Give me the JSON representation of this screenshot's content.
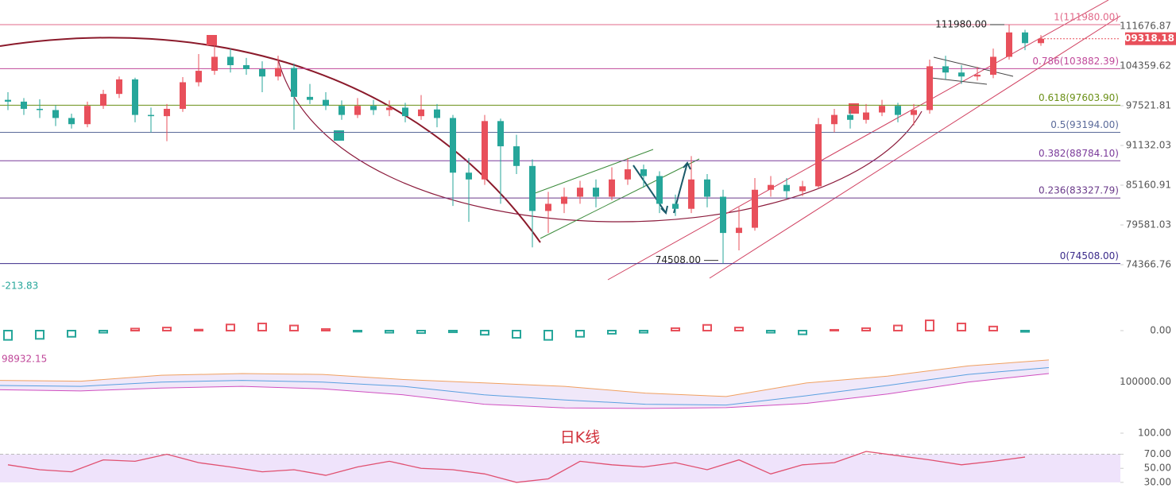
{
  "watermark": "日K线",
  "chart_data": [
    {
      "type": "candlestick",
      "log_scale": true,
      "up_color": "#e8505b",
      "down_color": "#26a69a",
      "ylim": [
        73170,
        116780
      ],
      "yticks": [
        111676.87,
        104359.62,
        97521.81,
        91132.03,
        85160.91,
        79581.03,
        74366.76
      ],
      "last_price": 109318.18,
      "fib_levels": [
        {
          "label": "1(111980.00)",
          "value": 111980,
          "color": "#e26a8a"
        },
        {
          "label": "0.786(103882.39)",
          "value": 103882.39,
          "color": "#c0489a"
        },
        {
          "label": "0.618(97603.90)",
          "value": 97603.9,
          "color": "#6a8f16"
        },
        {
          "label": "0.5(93194.00)",
          "value": 93194,
          "color": "#5a6a9a"
        },
        {
          "label": "0.382(88784.10)",
          "value": 88784.1,
          "color": "#7a3a9a"
        },
        {
          "label": "0.236(83327.79)",
          "value": 83327.79,
          "color": "#6a3a8a"
        },
        {
          "label": "0(74508.00)",
          "value": 74508,
          "color": "#3a2a8a"
        }
      ],
      "annotations": [
        {
          "label": "111980.00",
          "value": 111980
        },
        {
          "label": "74508.00",
          "value": 74508
        }
      ],
      "ohlc": [
        [
          98500,
          99800,
          96800,
          98200
        ],
        [
          98200,
          98800,
          96000,
          97000
        ],
        [
          97000,
          98600,
          95500,
          96800
        ],
        [
          96800,
          97600,
          94200,
          95500
        ],
        [
          95500,
          96200,
          93800,
          94500
        ],
        [
          94500,
          98200,
          94000,
          97500
        ],
        [
          97500,
          100200,
          97000,
          99500
        ],
        [
          99500,
          102500,
          98800,
          102000
        ],
        [
          102000,
          102300,
          94800,
          96000
        ],
        [
          96000,
          97200,
          93200,
          95800
        ],
        [
          95800,
          97800,
          91800,
          97000
        ],
        [
          97000,
          102400,
          96500,
          101500
        ],
        [
          101500,
          106500,
          100800,
          103500
        ],
        [
          103500,
          108500,
          102800,
          106000
        ],
        [
          106000,
          107500,
          103200,
          104500
        ],
        [
          104500,
          105800,
          102800,
          103800
        ],
        [
          103800,
          105200,
          99800,
          102500
        ],
        [
          102500,
          106200,
          101800,
          104000
        ],
        [
          104000,
          104800,
          93600,
          99000
        ],
        [
          99000,
          101200,
          97800,
          98500
        ],
        [
          98500,
          99800,
          96800,
          97500
        ],
        [
          97500,
          98400,
          95200,
          96000
        ],
        [
          96000,
          98800,
          95500,
          97500
        ],
        [
          97500,
          98500,
          96000,
          96800
        ],
        [
          96800,
          98400,
          95800,
          97200
        ],
        [
          97200,
          98000,
          94800,
          95800
        ],
        [
          95800,
          99300,
          95200,
          96900
        ],
        [
          96900,
          97800,
          94000,
          95500
        ],
        [
          95500,
          96000,
          82200,
          87000
        ],
        [
          87000,
          89200,
          80000,
          86000
        ],
        [
          86000,
          96000,
          85200,
          95000
        ],
        [
          95000,
          95400,
          82500,
          91000
        ],
        [
          91000,
          92800,
          86800,
          88000
        ],
        [
          88000,
          89000,
          76600,
          81500
        ],
        [
          81500,
          84200,
          78500,
          82500
        ],
        [
          82500,
          84800,
          81200,
          83500
        ],
        [
          83500,
          85800,
          82500,
          84800
        ],
        [
          84800,
          86000,
          82000,
          83500
        ],
        [
          83500,
          87800,
          83000,
          86000
        ],
        [
          86000,
          89200,
          85200,
          87500
        ],
        [
          87500,
          88200,
          84800,
          86500
        ],
        [
          86500,
          87200,
          81200,
          82500
        ],
        [
          82500,
          83800,
          80800,
          81800
        ],
        [
          81800,
          89500,
          81200,
          86000
        ],
        [
          86000,
          86800,
          82000,
          83500
        ],
        [
          83500,
          84500,
          74508,
          78500
        ],
        [
          78500,
          82000,
          76200,
          79200
        ],
        [
          79200,
          86200,
          78800,
          84500
        ],
        [
          84500,
          86500,
          83500,
          85200
        ],
        [
          85200,
          86200,
          83200,
          84300
        ],
        [
          84300,
          85800,
          83600,
          85000
        ],
        [
          85000,
          95500,
          84800,
          94500
        ],
        [
          94500,
          97000,
          93200,
          96000
        ],
        [
          96000,
          96800,
          93800,
          95200
        ],
        [
          95200,
          97800,
          94600,
          96400
        ],
        [
          96400,
          98500,
          95800,
          97500
        ],
        [
          97500,
          98000,
          94800,
          96000
        ],
        [
          96000,
          97800,
          94300,
          96800
        ],
        [
          96800,
          105500,
          96200,
          104300
        ],
        [
          104300,
          106200,
          102000,
          103200
        ],
        [
          103200,
          104500,
          101200,
          102500
        ],
        [
          102500,
          104200,
          101800,
          102800
        ],
        [
          102800,
          107500,
          102200,
          106000
        ],
        [
          106000,
          111980,
          105500,
          110500
        ],
        [
          110500,
          111000,
          107200,
          108500
        ],
        [
          108500,
          110000,
          108000,
          109318.18
        ]
      ]
    },
    {
      "type": "histogram-bars",
      "label": "-213.83",
      "label_color": "#26a69a",
      "up_color": "#e8505b",
      "down_color": "#26a69a",
      "ylim": [
        -1200,
        1200
      ],
      "yticks": [
        {
          "value": 0,
          "label": "0.00"
        }
      ],
      "values": [
        -450,
        -400,
        -300,
        -100,
        100,
        150,
        50,
        300,
        350,
        250,
        80,
        -50,
        -100,
        -120,
        -80,
        -200,
        -350,
        -450,
        -300,
        -150,
        -100,
        120,
        280,
        150,
        -100,
        -180,
        40,
        120,
        250,
        500,
        350,
        200,
        -60
      ]
    },
    {
      "type": "band",
      "label": "98932.15",
      "label_color": "#c0489a",
      "ylim": [
        84000,
        112000
      ],
      "yticks": [
        {
          "value": 100000,
          "label": "100000.00"
        }
      ],
      "series": [
        {
          "color": "#f0a060",
          "values": [
            101000,
            100500,
            104000,
            105000,
            104500,
            101500,
            99500,
            97500,
            93500,
            91500,
            99500,
            103500,
            109500,
            113000
          ]
        },
        {
          "color": "#5aa0e0",
          "values": [
            98000,
            97500,
            100000,
            101000,
            100000,
            97500,
            92500,
            89500,
            87000,
            86500,
            92000,
            98000,
            104500,
            108500
          ]
        },
        {
          "color": "#d050c0",
          "values": [
            95500,
            94800,
            96500,
            97500,
            96000,
            92500,
            87000,
            84800,
            84500,
            85000,
            87500,
            93000,
            100000,
            105000
          ]
        }
      ]
    },
    {
      "type": "line",
      "color": "#e05070",
      "band": [
        30,
        70
      ],
      "ylim": [
        22,
        100
      ],
      "yticks": [
        {
          "value": 100,
          "label": "100.00"
        },
        {
          "value": 70,
          "label": "70.00"
        },
        {
          "value": 50,
          "label": "50.00"
        },
        {
          "value": 30,
          "label": "30.00"
        }
      ],
      "values": [
        55,
        48,
        45,
        62,
        60,
        70,
        58,
        52,
        45,
        48,
        40,
        52,
        60,
        50,
        48,
        42,
        30,
        35,
        60,
        55,
        52,
        58,
        48,
        62,
        42,
        55,
        58,
        74,
        68,
        62,
        55,
        60,
        66
      ]
    }
  ]
}
